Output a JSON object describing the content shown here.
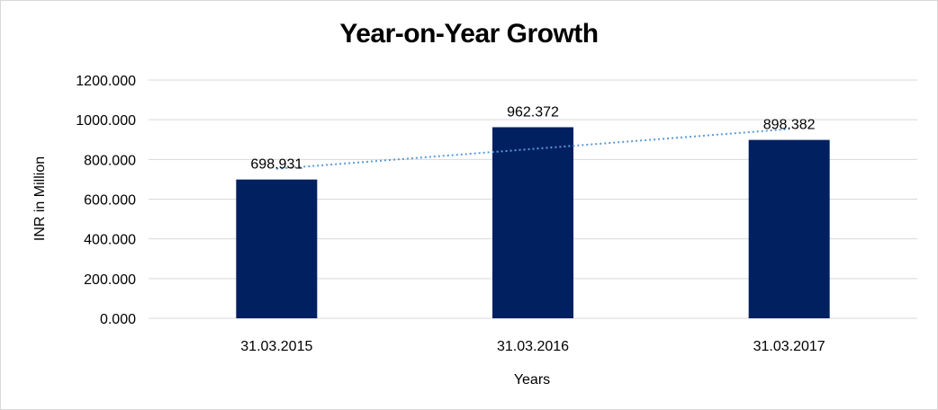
{
  "chart_data": {
    "type": "bar",
    "title": "Year-on-Year Growth",
    "xlabel": "Years",
    "ylabel": "INR in Million",
    "categories": [
      "31.03.2015",
      "31.03.2016",
      "31.03.2017"
    ],
    "values": [
      698.931,
      962.372,
      898.382
    ],
    "data_labels": [
      "698.931",
      "962.372",
      "898.382"
    ],
    "ylim": [
      0,
      1200
    ],
    "yticks": [
      "0.000",
      "200.000",
      "400.000",
      "600.000",
      "800.000",
      "1000.000",
      "1200.000"
    ],
    "grid": true,
    "legend": "none",
    "trendline": {
      "type": "linear",
      "style": "dotted",
      "start": 753,
      "end": 953
    },
    "colors": {
      "bar": "#002060",
      "trendline": "#5B9BD5",
      "grid": "#d9d9d9"
    }
  }
}
